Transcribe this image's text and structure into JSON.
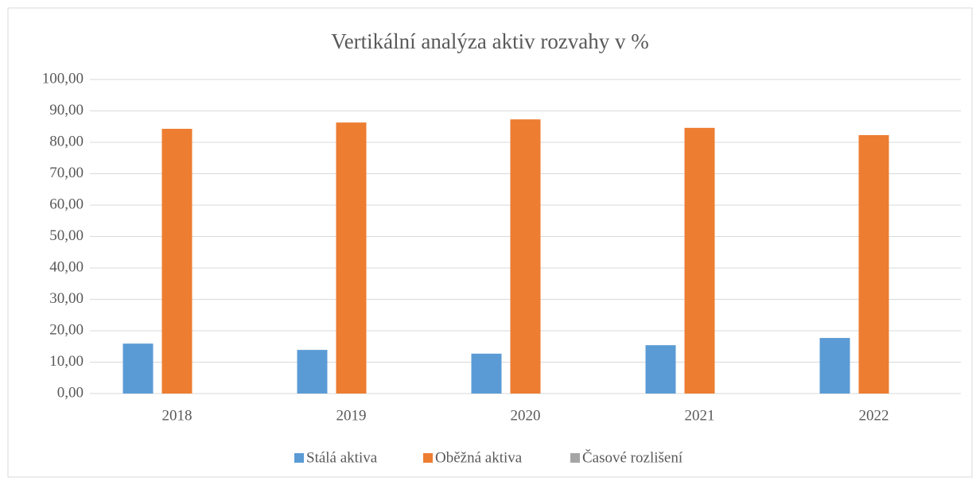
{
  "chart_data": {
    "type": "bar",
    "title": "Vertikální analýza aktiv rozvahy v %",
    "categories": [
      "2018",
      "2019",
      "2020",
      "2021",
      "2022"
    ],
    "series": [
      {
        "name": "Stálá aktiva",
        "color": "#5b9bd5",
        "values": [
          15.9,
          13.9,
          12.7,
          15.4,
          17.7
        ]
      },
      {
        "name": "Oběžná aktiva",
        "color": "#ed7d31",
        "values": [
          84.3,
          86.3,
          87.3,
          84.6,
          82.3
        ]
      },
      {
        "name": "Časové rozlišení",
        "color": "#a5a5a5",
        "values": [
          0,
          0,
          0,
          0,
          0
        ]
      }
    ],
    "ylim": [
      0,
      100
    ],
    "yticks": [
      {
        "value": 0,
        "label": "0,00"
      },
      {
        "value": 10,
        "label": "10,00"
      },
      {
        "value": 20,
        "label": "20,00"
      },
      {
        "value": 30,
        "label": "30,00"
      },
      {
        "value": 40,
        "label": "40,00"
      },
      {
        "value": 50,
        "label": "50,00"
      },
      {
        "value": 60,
        "label": "60,00"
      },
      {
        "value": 70,
        "label": "70,00"
      },
      {
        "value": 80,
        "label": "80,00"
      },
      {
        "value": 90,
        "label": "90,00"
      },
      {
        "value": 100,
        "label": "100,00"
      }
    ],
    "grid": true,
    "legend": "bottom"
  }
}
